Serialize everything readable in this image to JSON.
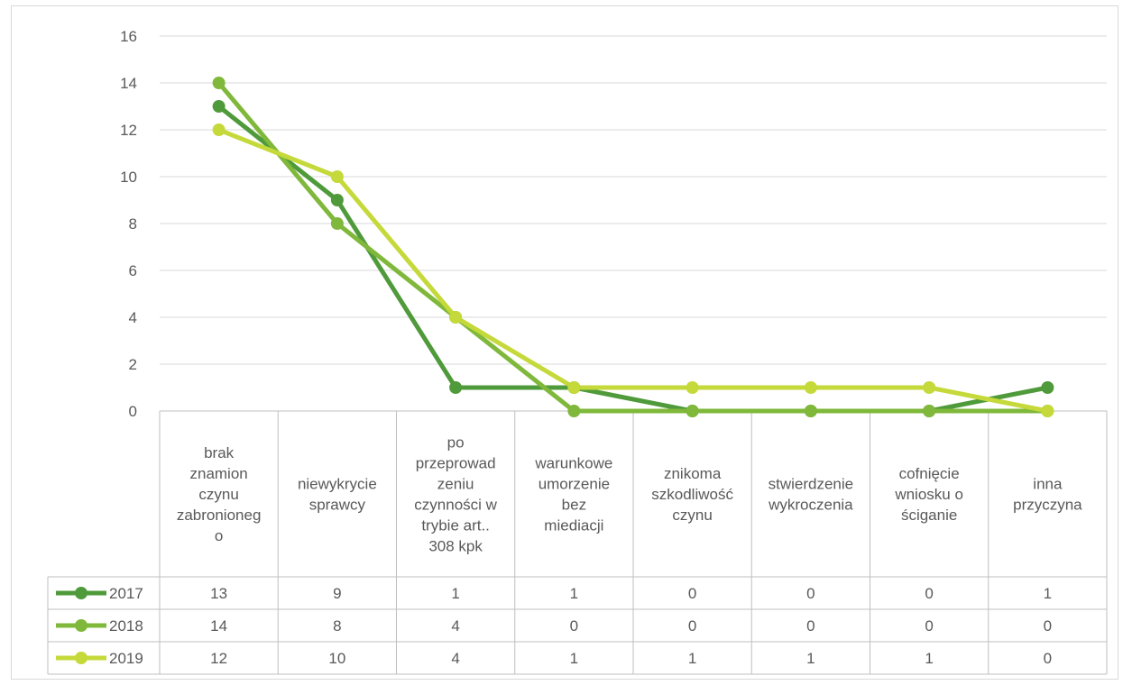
{
  "chart_data": {
    "type": "line",
    "categories": [
      "brak znamion czynu zabronionego",
      "niewykrycie sprawcy",
      "po przeprowadzeniu czynności w trybie art.. 308 kpk",
      "warunkowe umorzenie bez miediacji",
      "znikoma szkodliwość czynu",
      "stwierdzenie wykroczenia",
      "cofnięcie wniosku o ściganie",
      "inna przyczyna"
    ],
    "category_lines": [
      [
        "brak",
        "znamion",
        "czynu",
        "zabronioneg",
        "o"
      ],
      [
        "niewykrycie",
        "sprawcy"
      ],
      [
        "po",
        "przeprowad",
        "zeniu",
        "czynności w",
        "trybie art..",
        "308 kpk"
      ],
      [
        "warunkowe",
        "umorzenie",
        "bez",
        "miediacji"
      ],
      [
        "znikoma",
        "szkodliwość",
        "czynu"
      ],
      [
        "stwierdzenie",
        "wykroczenia"
      ],
      [
        "cofnięcie",
        "wniosku o",
        "ściganie"
      ],
      [
        "inna",
        "przyczyna"
      ]
    ],
    "series": [
      {
        "name": "2017",
        "color": "#4f9a3a",
        "values": [
          13,
          9,
          1,
          1,
          0,
          0,
          0,
          1
        ]
      },
      {
        "name": "2018",
        "color": "#7fb83a",
        "values": [
          14,
          8,
          4,
          0,
          0,
          0,
          0,
          0
        ]
      },
      {
        "name": "2019",
        "color": "#c5d93a",
        "values": [
          12,
          10,
          4,
          1,
          1,
          1,
          1,
          0
        ]
      }
    ],
    "ylim": [
      0,
      16
    ],
    "yticks": [
      0,
      2,
      4,
      6,
      8,
      10,
      12,
      14,
      16
    ],
    "grid": true,
    "legend": "data-table",
    "title": "",
    "xlabel": "",
    "ylabel": ""
  }
}
